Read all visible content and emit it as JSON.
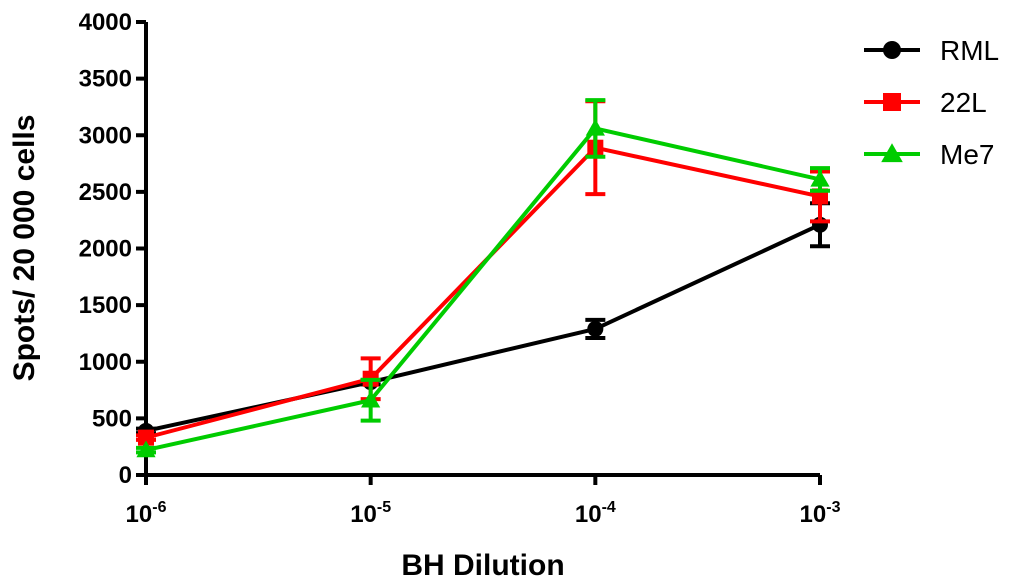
{
  "chart_data": {
    "type": "line",
    "title": "",
    "xlabel": "BH Dilution",
    "ylabel": "Spots/ 20 000 cells",
    "ylim": [
      0,
      4000
    ],
    "yticks": [
      0,
      500,
      1000,
      1500,
      2000,
      2500,
      3000,
      3500,
      4000
    ],
    "categories": [
      {
        "base": "10",
        "exp": "-6"
      },
      {
        "base": "10",
        "exp": "-5"
      },
      {
        "base": "10",
        "exp": "-4"
      },
      {
        "base": "10",
        "exp": "-3"
      }
    ],
    "legend_position": "top-right",
    "grid": false,
    "series": [
      {
        "name": "RML",
        "color": "#000000",
        "marker": "circle",
        "values": [
          390,
          820,
          1290,
          2210
        ],
        "errors": [
          20,
          20,
          80,
          190
        ]
      },
      {
        "name": "22L",
        "color": "#ff0000",
        "marker": "square",
        "values": [
          330,
          850,
          2890,
          2460
        ],
        "errors": [
          20,
          180,
          410,
          220
        ]
      },
      {
        "name": "Me7",
        "color": "#00cc00",
        "marker": "triangle",
        "values": [
          220,
          660,
          3060,
          2610
        ],
        "errors": [
          20,
          180,
          250,
          100
        ]
      }
    ]
  }
}
